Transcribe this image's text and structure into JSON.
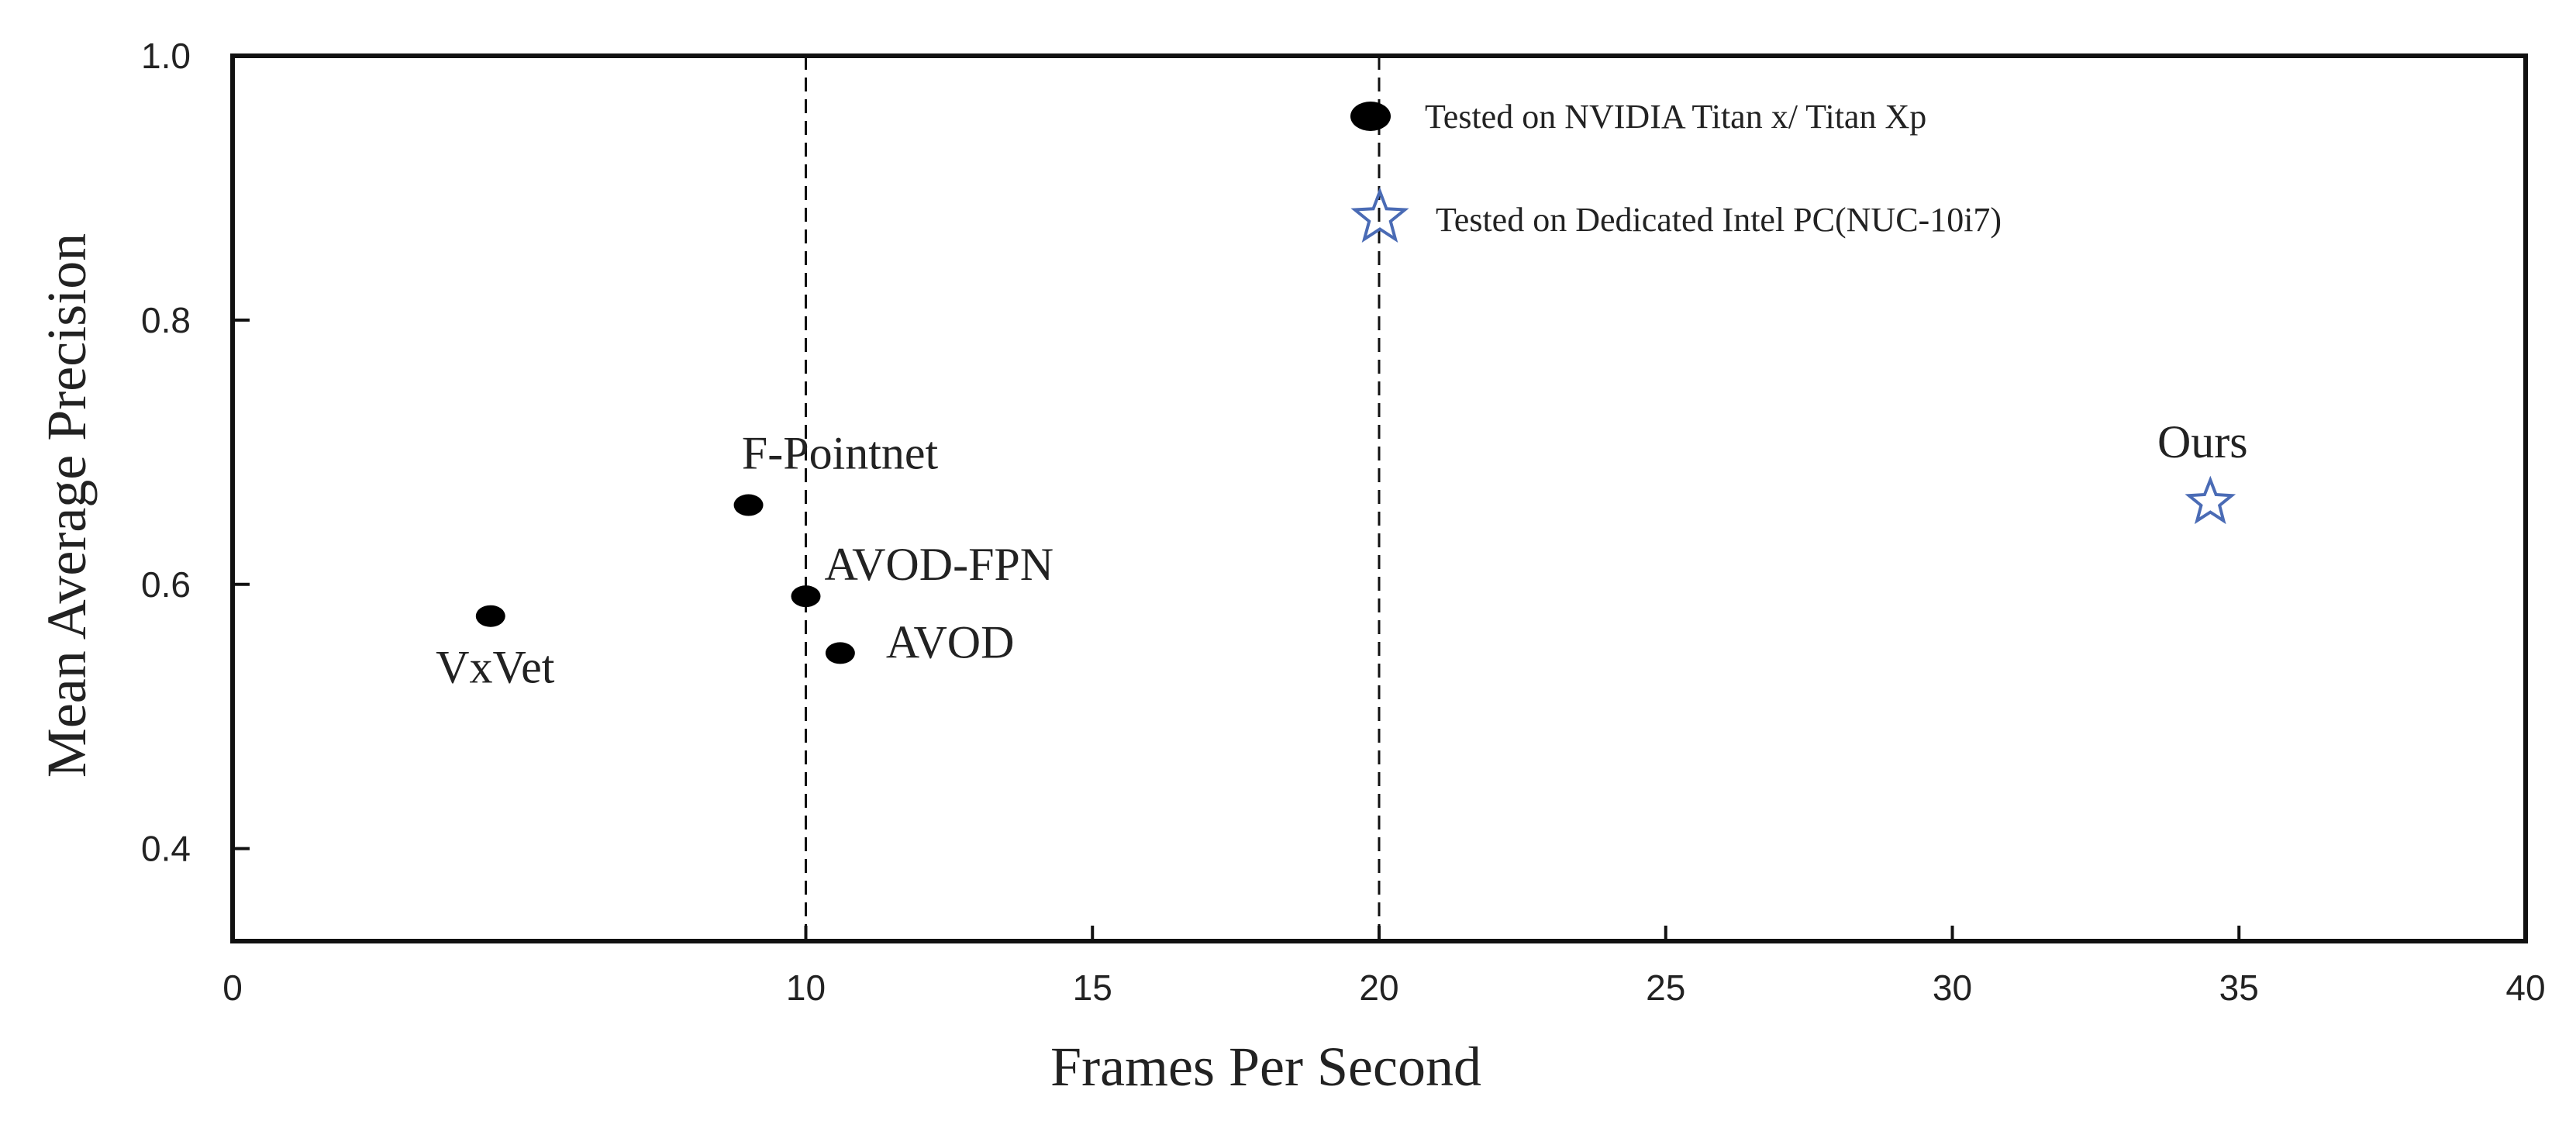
{
  "chart_data": {
    "type": "scatter",
    "title": "",
    "xlabel": "Frames Per Second",
    "ylabel": "Mean Average Precision",
    "xlim": [
      0,
      40
    ],
    "ylim": [
      0.33,
      1.0
    ],
    "x_ticks": [
      "0",
      "10",
      "15",
      "20",
      "25",
      "30",
      "35",
      "40"
    ],
    "x_tick_values": [
      0,
      10,
      15,
      20,
      25,
      30,
      35,
      40
    ],
    "y_ticks": [
      "0.4",
      "0.6",
      "0.8",
      "1.0"
    ],
    "y_tick_values": [
      0.4,
      0.6,
      0.8,
      1.0
    ],
    "vlines": [
      10,
      20
    ],
    "grid": false,
    "legend_position": "top-right",
    "series": [
      {
        "name": "Tested on NVIDIA Titan x/ Titan Xp",
        "marker": "ellipse",
        "color": "#000000",
        "points": [
          {
            "label": "VxVet",
            "x": 4.5,
            "y": 0.576
          },
          {
            "label": "F-Pointnet",
            "x": 9.0,
            "y": 0.66
          },
          {
            "label": "AVOD-FPN",
            "x": 10.0,
            "y": 0.591
          },
          {
            "label": "AVOD",
            "x": 10.6,
            "y": 0.548
          }
        ]
      },
      {
        "name": "Tested on Dedicated Intel PC(NUC-10i7)",
        "marker": "star",
        "color": "#4a6bb5",
        "points": [
          {
            "label": "Ours",
            "x": 34.5,
            "y": 0.662
          }
        ]
      }
    ]
  }
}
